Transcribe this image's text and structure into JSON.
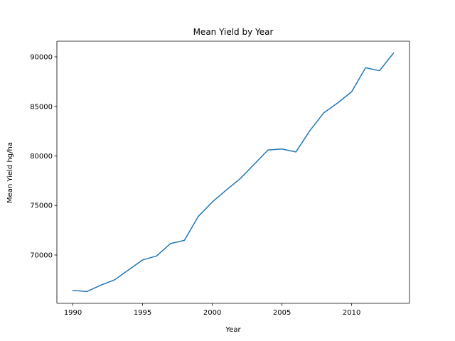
{
  "chart_data": {
    "type": "line",
    "title": "Mean Yield by Year",
    "xlabel": "Year",
    "ylabel": "Mean Yield hg/ha",
    "xlim": [
      1988.85,
      2014.15
    ],
    "ylim": [
      65120,
      91580
    ],
    "xticks": [
      1990,
      1995,
      2000,
      2005,
      2010
    ],
    "yticks": [
      70000,
      75000,
      80000,
      85000,
      90000
    ],
    "grid": false,
    "legend": "none",
    "series": [
      {
        "name": "Mean Yield",
        "color": "#1f77b4",
        "x": [
          1990,
          1991,
          1992,
          1993,
          1994,
          1995,
          1996,
          1997,
          1998,
          1999,
          2000,
          2001,
          2002,
          2003,
          2004,
          2005,
          2006,
          2007,
          2008,
          2009,
          2010,
          2011,
          2012,
          2013
        ],
        "y": [
          66430,
          66310,
          66950,
          67500,
          68500,
          69500,
          69900,
          71150,
          71480,
          73900,
          75350,
          76550,
          77700,
          79150,
          80600,
          80700,
          80400,
          82550,
          84350,
          85350,
          86480,
          88900,
          88600,
          90380
        ]
      }
    ]
  }
}
